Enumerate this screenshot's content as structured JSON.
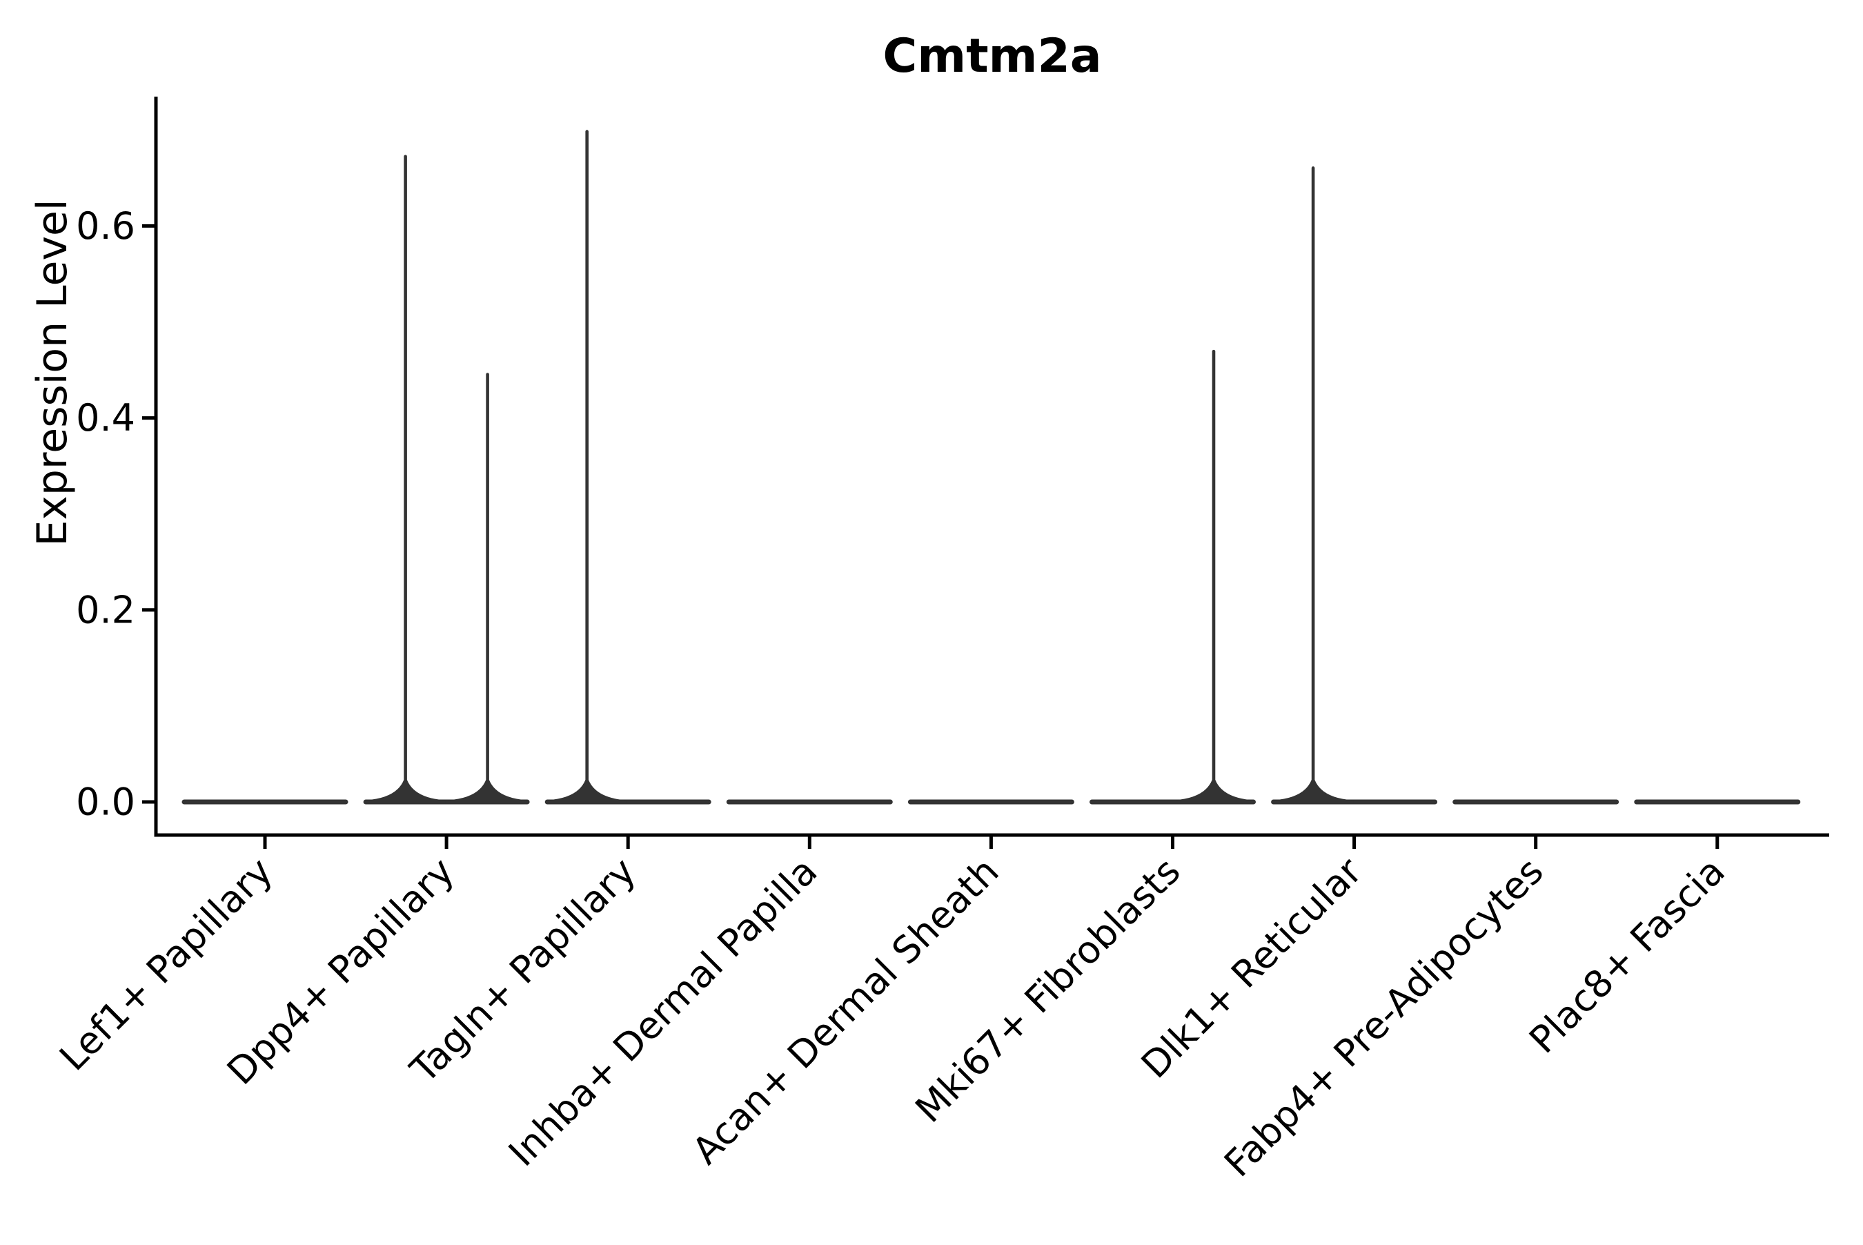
{
  "figure": {
    "title": "Cmtm2a",
    "ylabel": "Expression Level"
  },
  "colors": {
    "violin_ink": "#333333",
    "axis_ink": "#000000",
    "background": "#ffffff"
  },
  "chart_data": {
    "type": "violin",
    "title": "Cmtm2a",
    "xlabel": "",
    "ylabel": "Expression Level",
    "ylim": [
      -0.035,
      0.735
    ],
    "yticks": [
      0.0,
      0.2,
      0.4,
      0.6
    ],
    "ytick_labels": [
      "0.0",
      "0.2",
      "0.4",
      "0.6"
    ],
    "grid": false,
    "legend": "none",
    "categories": [
      "Lef1+ Papillary",
      "Dpp4+ Papillary",
      "Tagln+ Papillary",
      "Inhba+ Dermal Papilla",
      "Acan+ Dermal Sheath",
      "Mki67+ Fibroblasts",
      "Dlk1+ Reticular",
      "Fabp4+ Pre-Adipocytes",
      "Plac8+ Fascia"
    ],
    "violins": [
      {
        "category": "Lef1+ Papillary",
        "body_value": 0.0,
        "spikes": []
      },
      {
        "category": "Dpp4+ Papillary",
        "body_value": 0.0,
        "spikes": [
          {
            "position": "left",
            "max_expression": 0.674
          },
          {
            "position": "right",
            "max_expression": 0.447
          }
        ]
      },
      {
        "category": "Tagln+ Papillary",
        "body_value": 0.0,
        "spikes": [
          {
            "position": "left",
            "max_expression": 0.7
          }
        ]
      },
      {
        "category": "Inhba+ Dermal Papilla",
        "body_value": 0.0,
        "spikes": []
      },
      {
        "category": "Acan+ Dermal Sheath",
        "body_value": 0.0,
        "spikes": []
      },
      {
        "category": "Mki67+ Fibroblasts",
        "body_value": 0.0,
        "spikes": [
          {
            "position": "right",
            "max_expression": 0.471
          }
        ]
      },
      {
        "category": "Dlk1+ Reticular",
        "body_value": 0.0,
        "spikes": [
          {
            "position": "left",
            "max_expression": 0.662
          }
        ]
      },
      {
        "category": "Fabp4+ Pre-Adipocytes",
        "body_value": 0.0,
        "spikes": []
      },
      {
        "category": "Plac8+ Fascia",
        "body_value": 0.0,
        "spikes": []
      }
    ]
  }
}
